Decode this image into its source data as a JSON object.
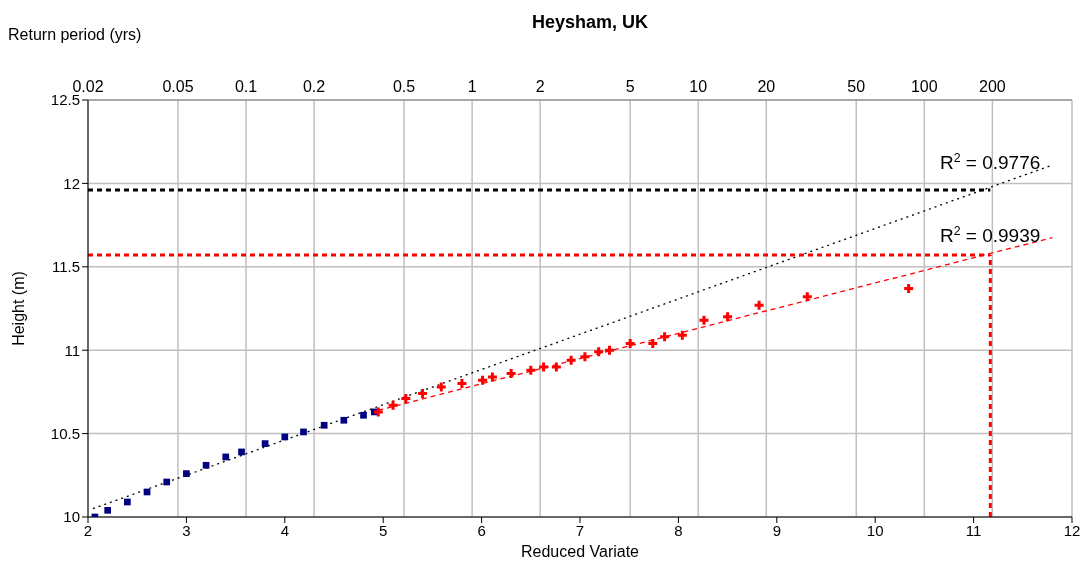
{
  "chart_data": {
    "type": "scatter",
    "title": "Heysham, UK",
    "xlabel": "Reduced Variate",
    "ylabel": "Height (m)",
    "x2label": "Return period (yrs)",
    "xlim": [
      2,
      12
    ],
    "xticks": [
      2,
      3,
      4,
      5,
      6,
      7,
      8,
      9,
      10,
      11,
      12
    ],
    "x2lim": [
      0.02,
      450
    ],
    "x2ticks": [
      0.02,
      0.05,
      0.1,
      0.2,
      0.5,
      1,
      2,
      5,
      10,
      20,
      50,
      100,
      200
    ],
    "log": "x2",
    "ylim": [
      10,
      12.5
    ],
    "yticks": [
      10,
      10.5,
      11,
      11.5,
      12,
      12.5
    ],
    "grid": true,
    "legend": false,
    "series": [
      {
        "type": "scatter",
        "marker": "square",
        "color": "#000080",
        "x": [
          2.07,
          2.2,
          2.4,
          2.6,
          2.8,
          3.0,
          3.2,
          3.4,
          3.56,
          3.8,
          4.0,
          4.19,
          4.4,
          4.6,
          4.8,
          4.91
        ],
        "values": [
          10.0,
          10.04,
          10.09,
          10.15,
          10.21,
          10.26,
          10.31,
          10.36,
          10.39,
          10.44,
          10.48,
          10.51,
          10.55,
          10.58,
          10.61,
          10.63
        ]
      },
      {
        "type": "scatter",
        "marker": "cross",
        "color": "#ff0000",
        "x": [
          4.95,
          5.1,
          5.23,
          5.4,
          5.59,
          5.8,
          6.01,
          6.11,
          6.3,
          6.5,
          6.63,
          6.76,
          6.91,
          7.05,
          7.19,
          7.3,
          7.51,
          7.74,
          7.86,
          8.04,
          8.26,
          8.5,
          8.82,
          9.31,
          10.34
        ],
        "values": [
          10.63,
          10.67,
          10.71,
          10.74,
          10.78,
          10.8,
          10.82,
          10.84,
          10.86,
          10.88,
          10.9,
          10.9,
          10.94,
          10.96,
          10.99,
          11.0,
          11.04,
          11.04,
          11.08,
          11.09,
          11.18,
          11.2,
          11.27,
          11.32,
          11.37
        ]
      },
      {
        "type": "line",
        "line_style": "dotted",
        "color": "#000000",
        "x": [
          2.05,
          11.8
        ],
        "values": [
          10.05,
          12.11
        ]
      },
      {
        "type": "line",
        "line_style": "dashed",
        "color": "#ff0000",
        "x": [
          4.95,
          11.8
        ],
        "values": [
          10.64,
          11.675
        ]
      },
      {
        "type": "line",
        "line_style": "dashed",
        "color": "#000000",
        "x": [
          2,
          11.17
        ],
        "values": [
          11.96,
          11.96
        ]
      },
      {
        "type": "line",
        "line_style": "dashed",
        "color": "#ff0000",
        "x": [
          2,
          11.17
        ],
        "values": [
          11.57,
          11.57
        ]
      },
      {
        "type": "line",
        "line_style": "dashed",
        "color": "#ff0000",
        "x": [
          11.17,
          11.17
        ],
        "values": [
          10,
          11.57
        ]
      }
    ],
    "annotations": [
      "R$^{2}$ = 0.9776",
      "R$^{2}$ = 0.9939"
    ]
  }
}
